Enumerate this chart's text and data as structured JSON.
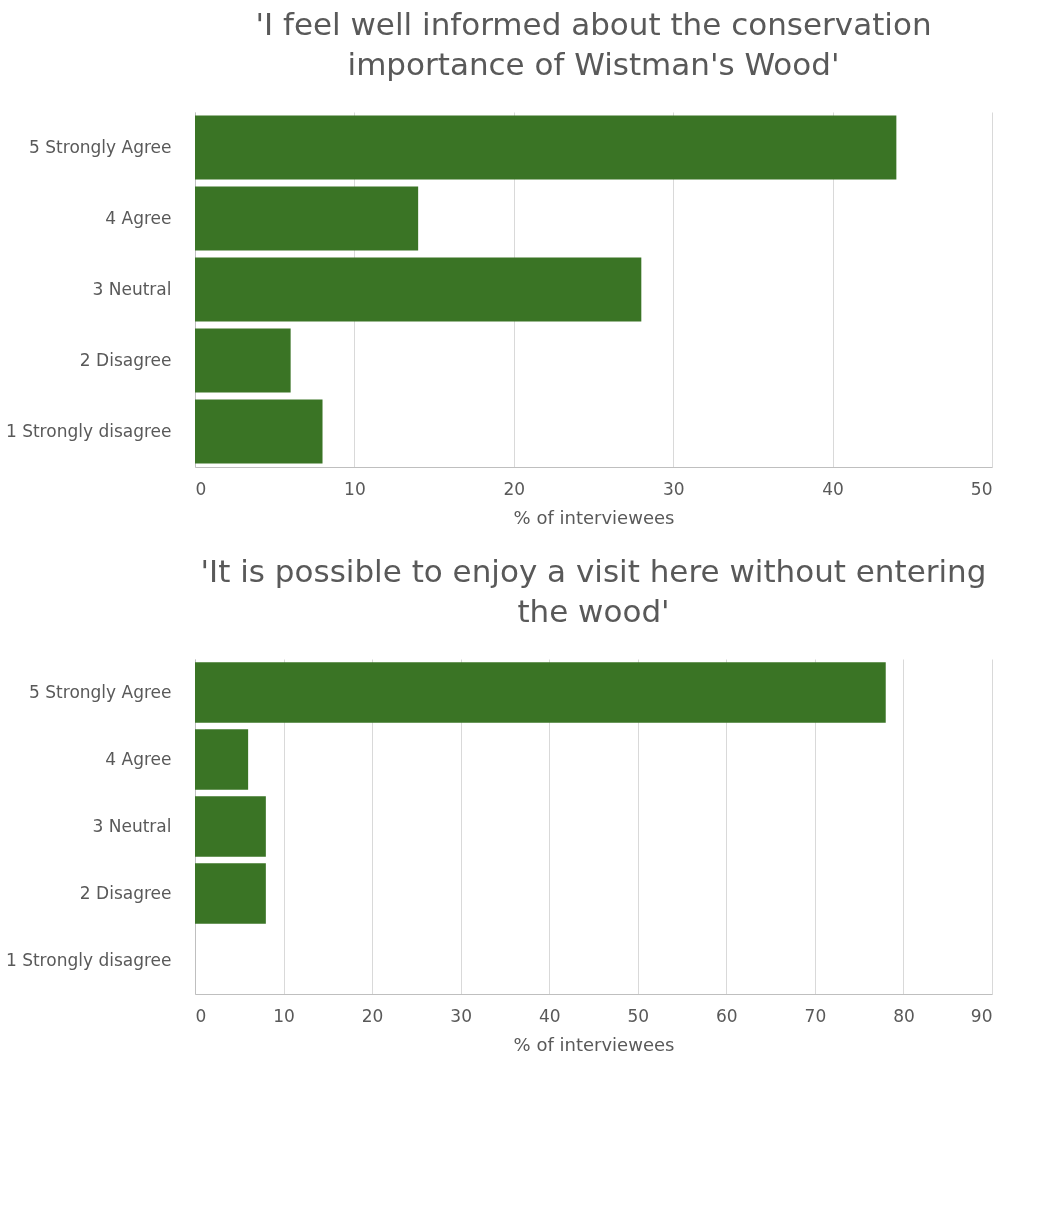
{
  "chart_data": [
    {
      "type": "bar",
      "orientation": "horizontal",
      "title": "'I feel well informed about the conservation importance of Wistman's Wood'",
      "xlabel": "% of interviewees",
      "categories": [
        "5 Strongly Agree",
        "4 Agree",
        "3 Neutral",
        "2 Disagree",
        "1 Strongly disagree"
      ],
      "values": [
        44,
        14,
        28,
        6,
        8
      ],
      "color": "#3a7425",
      "xlim": [
        0,
        50
      ],
      "xticks": [
        0,
        10,
        20,
        30,
        40,
        50
      ],
      "grid": "x",
      "legend": false
    },
    {
      "type": "bar",
      "orientation": "horizontal",
      "title": "'It is possible to enjoy a visit here without entering the wood'",
      "xlabel": "% of interviewees",
      "categories": [
        "5 Strongly Agree",
        "4 Agree",
        "3 Neutral",
        "2 Disagree",
        "1 Strongly disagree"
      ],
      "values": [
        78,
        6,
        8,
        8,
        0
      ],
      "color": "#3a7425",
      "xlim": [
        0,
        90
      ],
      "xticks": [
        0,
        10,
        20,
        30,
        40,
        50,
        60,
        70,
        80,
        90
      ],
      "grid": "x",
      "legend": false
    }
  ]
}
